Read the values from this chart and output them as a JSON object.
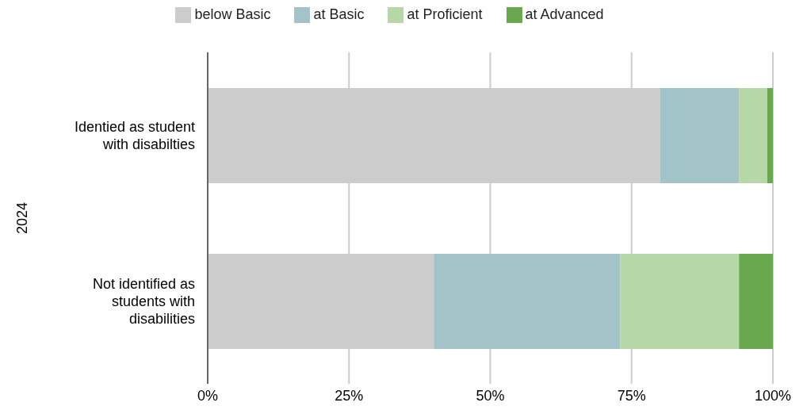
{
  "chart_data": {
    "type": "bar",
    "orientation": "horizontal",
    "stacked": true,
    "ylabel": "2024",
    "categories": [
      "Identied as student with disabilties",
      "Not identified as students with disabilities"
    ],
    "series": [
      {
        "name": "below Basic",
        "color": "#cccccc",
        "values": [
          80,
          40
        ]
      },
      {
        "name": "at Basic",
        "color": "#a2c4c9",
        "values": [
          14,
          33
        ]
      },
      {
        "name": "at Proficient",
        "color": "#b6d7a8",
        "values": [
          5,
          21
        ]
      },
      {
        "name": "at Advanced",
        "color": "#6aa84f",
        "values": [
          1,
          6
        ]
      }
    ],
    "xlim": [
      0,
      100
    ],
    "xticks": [
      {
        "value": 0,
        "label": "0%"
      },
      {
        "value": 25,
        "label": "25%"
      },
      {
        "value": 50,
        "label": "50%"
      },
      {
        "value": 75,
        "label": "75%"
      },
      {
        "value": 100,
        "label": "100%"
      }
    ],
    "grid": "x",
    "legend": "top"
  }
}
